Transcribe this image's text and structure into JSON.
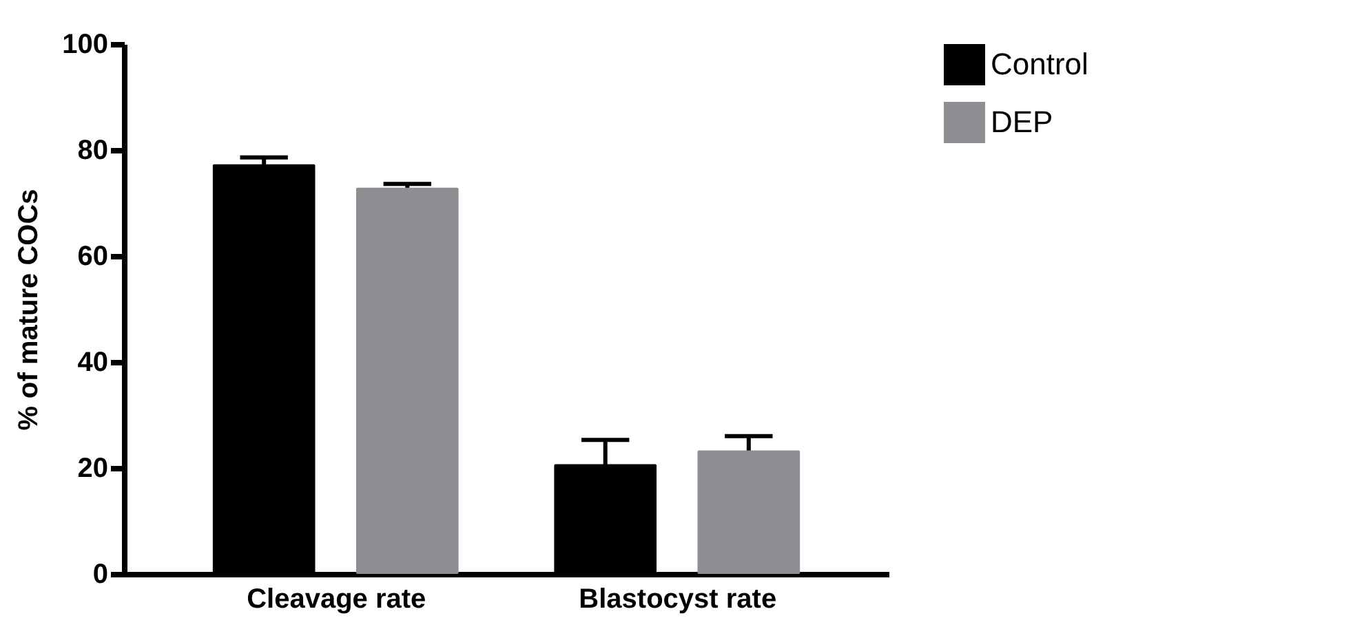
{
  "chart_data": {
    "type": "bar",
    "ylabel": "% of mature COCs",
    "categories": [
      "Cleavage rate",
      "Blastocyst rate"
    ],
    "series": [
      {
        "name": "Control",
        "color": "#000000",
        "values": [
          77.3,
          20.7
        ],
        "errors": [
          1.3,
          4.6
        ]
      },
      {
        "name": "DEP",
        "color": "#8e8d92",
        "values": [
          72.9,
          23.3
        ],
        "errors": [
          0.7,
          2.7
        ]
      }
    ],
    "ylim": [
      0,
      100
    ],
    "yticks": [
      0,
      20,
      40,
      60,
      80,
      100
    ],
    "grid": false,
    "legend": "top right"
  }
}
